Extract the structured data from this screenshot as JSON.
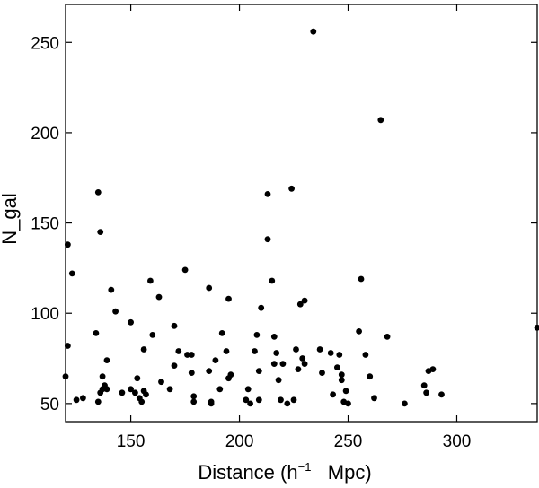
{
  "chart_data": {
    "type": "scatter",
    "title": "",
    "xlabel": {
      "prefix": "Distance (h",
      "sup": "−1",
      "suffix": "   Mpc)"
    },
    "ylabel": "N_gal",
    "xlim": [
      120,
      337
    ],
    "ylim": [
      40,
      271
    ],
    "xticks": [
      150,
      200,
      250,
      300
    ],
    "yticks": [
      50,
      100,
      150,
      200,
      250
    ],
    "grid": false,
    "marker_color": "#000000",
    "series": [
      {
        "points": [
          [
            120,
            65
          ],
          [
            121,
            138
          ],
          [
            121,
            82
          ],
          [
            123,
            122
          ],
          [
            125,
            52
          ],
          [
            128,
            53
          ],
          [
            134,
            89
          ],
          [
            135,
            167
          ],
          [
            135,
            51
          ],
          [
            136,
            145
          ],
          [
            136,
            56
          ],
          [
            137,
            65
          ],
          [
            137,
            58
          ],
          [
            138,
            60
          ],
          [
            139,
            58
          ],
          [
            139,
            74
          ],
          [
            141,
            113
          ],
          [
            143,
            101
          ],
          [
            146,
            56
          ],
          [
            150,
            95
          ],
          [
            150,
            58
          ],
          [
            152,
            56
          ],
          [
            153,
            64
          ],
          [
            154,
            53
          ],
          [
            155,
            51
          ],
          [
            156,
            80
          ],
          [
            156,
            57
          ],
          [
            157,
            55
          ],
          [
            159,
            118
          ],
          [
            160,
            88
          ],
          [
            163,
            109
          ],
          [
            164,
            62
          ],
          [
            168,
            58
          ],
          [
            170,
            93
          ],
          [
            170,
            71
          ],
          [
            172,
            79
          ],
          [
            175,
            124
          ],
          [
            176,
            77
          ],
          [
            178,
            77
          ],
          [
            178,
            67
          ],
          [
            179,
            54
          ],
          [
            179,
            51
          ],
          [
            186,
            114
          ],
          [
            186,
            68
          ],
          [
            187,
            51
          ],
          [
            187,
            50
          ],
          [
            189,
            74
          ],
          [
            191,
            58
          ],
          [
            192,
            89
          ],
          [
            194,
            79
          ],
          [
            195,
            64
          ],
          [
            195,
            108
          ],
          [
            196,
            66
          ],
          [
            203,
            52
          ],
          [
            204,
            58
          ],
          [
            205,
            50
          ],
          [
            207,
            79
          ],
          [
            208,
            88
          ],
          [
            209,
            52
          ],
          [
            209,
            68
          ],
          [
            210,
            103
          ],
          [
            213,
            166
          ],
          [
            213,
            141
          ],
          [
            215,
            118
          ],
          [
            216,
            87
          ],
          [
            216,
            72
          ],
          [
            217,
            78
          ],
          [
            218,
            63
          ],
          [
            219,
            52
          ],
          [
            220,
            72
          ],
          [
            222,
            50
          ],
          [
            224,
            169
          ],
          [
            225,
            52
          ],
          [
            226,
            80
          ],
          [
            227,
            69
          ],
          [
            228,
            105
          ],
          [
            229,
            75
          ],
          [
            230,
            107
          ],
          [
            230,
            72
          ],
          [
            234,
            256
          ],
          [
            237,
            80
          ],
          [
            238,
            67
          ],
          [
            242,
            78
          ],
          [
            243,
            55
          ],
          [
            245,
            70
          ],
          [
            246,
            77
          ],
          [
            247,
            63
          ],
          [
            247,
            66
          ],
          [
            248,
            51
          ],
          [
            249,
            57
          ],
          [
            250,
            50
          ],
          [
            255,
            90
          ],
          [
            256,
            119
          ],
          [
            258,
            77
          ],
          [
            260,
            65
          ],
          [
            262,
            53
          ],
          [
            265,
            207
          ],
          [
            268,
            87
          ],
          [
            276,
            50
          ],
          [
            285,
            60
          ],
          [
            286,
            56
          ],
          [
            287,
            68
          ],
          [
            289,
            69
          ],
          [
            293,
            55
          ],
          [
            337,
            92
          ]
        ]
      }
    ]
  }
}
